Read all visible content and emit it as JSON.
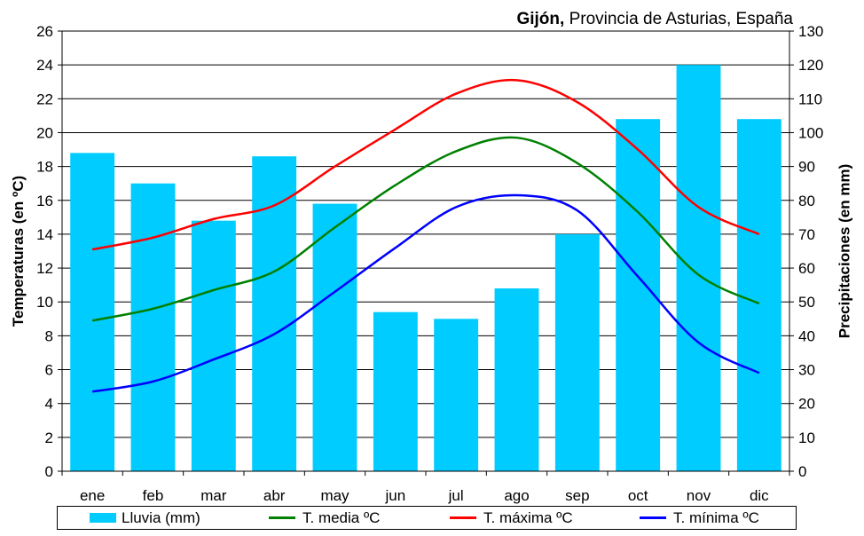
{
  "header": {
    "title_bold": "Gijón,",
    "title_rest": " Provincia de Asturias, España"
  },
  "axes": {
    "left_label": "Temperaturas (en ºC)",
    "right_label": "Precipitaciones (en mm)"
  },
  "chart_data": {
    "type": "bar",
    "title": "Gijón, Provincia de Asturias, España",
    "categories": [
      "ene",
      "feb",
      "mar",
      "abr",
      "may",
      "jun",
      "jul",
      "ago",
      "sep",
      "oct",
      "nov",
      "dic"
    ],
    "ylabel": "Temperaturas (en ºC)",
    "ylim": [
      0,
      26
    ],
    "yticks": [
      0,
      2,
      4,
      6,
      8,
      10,
      12,
      14,
      16,
      18,
      20,
      22,
      24,
      26
    ],
    "y2label": "Precipitaciones (en mm)",
    "y2lim": [
      0,
      130
    ],
    "y2ticks": [
      0,
      10,
      20,
      30,
      40,
      50,
      60,
      70,
      80,
      90,
      100,
      110,
      120,
      130
    ],
    "grid": true,
    "legend_position": "bottom",
    "bars": {
      "name": "Lluvia (mm)",
      "axis": "right",
      "color": "#00ccff",
      "values": [
        94,
        85,
        74,
        93,
        79,
        47,
        45,
        54,
        70,
        104,
        120,
        104
      ]
    },
    "series": [
      {
        "name": "T. media ºC",
        "axis": "left",
        "color": "#008000",
        "values": [
          8.9,
          9.6,
          10.7,
          11.8,
          14.4,
          16.9,
          18.9,
          19.7,
          18.2,
          15.3,
          11.6,
          9.9
        ]
      },
      {
        "name": "T. máxima ºC",
        "axis": "left",
        "color": "#ff0000",
        "values": [
          13.1,
          13.8,
          14.9,
          15.7,
          18.0,
          20.2,
          22.3,
          23.1,
          21.8,
          19.0,
          15.6,
          14.0
        ]
      },
      {
        "name": "T. mínima ºC",
        "axis": "left",
        "color": "#0000ff",
        "values": [
          4.7,
          5.3,
          6.6,
          8.1,
          10.6,
          13.2,
          15.6,
          16.3,
          15.4,
          11.5,
          7.6,
          5.8
        ]
      }
    ]
  },
  "legend": {
    "items": [
      {
        "label": "Lluvia (mm)",
        "color": "#00ccff",
        "kind": "bar"
      },
      {
        "label": "T. media ºC",
        "color": "#008000",
        "kind": "line"
      },
      {
        "label": "T. máxima ºC",
        "color": "#ff0000",
        "kind": "line"
      },
      {
        "label": "T. mínima ºC",
        "color": "#0000ff",
        "kind": "line"
      }
    ]
  }
}
